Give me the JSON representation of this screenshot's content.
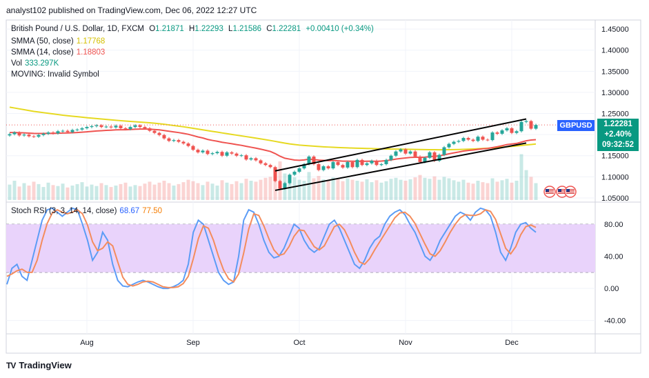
{
  "header": {
    "publisher": "analyst102 published on TradingView.com, Dec 06, 2022 12:27 UTC"
  },
  "legend": {
    "title": "British Pound / U.S. Dollar, 1D, FXCM",
    "ohlc": {
      "o_label": "O",
      "o": "1.21871",
      "h_label": "H",
      "h": "1.22293",
      "l_label": "L",
      "l": "1.21586",
      "c_label": "C",
      "c": "1.22281",
      "change": "+0.00410 (+0.34%)"
    },
    "smma50_label": "SMMA (50, close)",
    "smma50_value": "1.17768",
    "smma14_label": "SMMA (14, close)",
    "smma14_value": "1.18803",
    "vol_label": "Vol",
    "vol_value": "333.297K",
    "moving_label": "MOVING: Invalid Symbol"
  },
  "price_badges": {
    "symbol": "GBPUSD",
    "price": "1.22281",
    "change_pct": "+2.40%",
    "countdown": "09:32:52"
  },
  "stoch": {
    "label": "Stoch RSI (3, 3, 14, 14, close)",
    "k_value": "68.67",
    "d_value": "77.50"
  },
  "colors": {
    "up": "#26a69a",
    "down": "#ef5350",
    "smma50": "#e6d920",
    "smma14": "#ef5350",
    "k": "#5b9cf6",
    "d": "#f48c5c",
    "band": "#e9d3fb",
    "badge": "#2962ff"
  },
  "branding": {
    "name": "TradingView",
    "logo": "TV"
  },
  "chart_data": [
    {
      "type": "candlestick",
      "title": "British Pound / U.S. Dollar, 1D, FXCM",
      "x_ticks": [
        "Aug",
        "Sep",
        "Oct",
        "Nov",
        "Dec"
      ],
      "y_ticks": [
        "1.45000",
        "1.40000",
        "1.35000",
        "1.30000",
        "1.25000",
        "1.20000",
        "1.15000",
        "1.10000",
        "1.05000"
      ],
      "ylim": [
        1.045,
        1.46
      ],
      "x_tick_index": {
        "Aug": 16,
        "Sep": 38,
        "Oct": 60,
        "Nov": 82,
        "Dec": 104
      },
      "closes": [
        1.201,
        1.205,
        1.198,
        1.2,
        1.196,
        1.195,
        1.199,
        1.202,
        1.205,
        1.203,
        1.208,
        1.209,
        1.206,
        1.211,
        1.212,
        1.215,
        1.218,
        1.22,
        1.222,
        1.218,
        1.219,
        1.217,
        1.221,
        1.215,
        1.213,
        1.218,
        1.222,
        1.218,
        1.215,
        1.209,
        1.204,
        1.199,
        1.191,
        1.185,
        1.187,
        1.183,
        1.179,
        1.173,
        1.164,
        1.158,
        1.162,
        1.154,
        1.156,
        1.159,
        1.15,
        1.158,
        1.155,
        1.15,
        1.151,
        1.141,
        1.144,
        1.139,
        1.132,
        1.128,
        1.123,
        1.09,
        1.072,
        1.085,
        1.105,
        1.112,
        1.12,
        1.13,
        1.148,
        1.13,
        1.116,
        1.125,
        1.12,
        1.135,
        1.128,
        1.122,
        1.135,
        1.123,
        1.14,
        1.128,
        1.132,
        1.138,
        1.128,
        1.13,
        1.14,
        1.15,
        1.16,
        1.165,
        1.155,
        1.16,
        1.148,
        1.135,
        1.145,
        1.158,
        1.138,
        1.152,
        1.17,
        1.178,
        1.183,
        1.185,
        1.192,
        1.188,
        1.185,
        1.195,
        1.188,
        1.187,
        1.205,
        1.202,
        1.21,
        1.215,
        1.204,
        1.208,
        1.23,
        1.232,
        1.214,
        1.2228
      ],
      "smma50": [
        1.265,
        1.263,
        1.261,
        1.259,
        1.257,
        1.255,
        1.2535,
        1.252,
        1.2505,
        1.249,
        1.2475,
        1.246,
        1.2448,
        1.2436,
        1.2424,
        1.2412,
        1.24,
        1.239,
        1.238,
        1.237,
        1.236,
        1.235,
        1.234,
        1.233,
        1.232,
        1.2312,
        1.2304,
        1.2296,
        1.2288,
        1.228,
        1.227,
        1.2258,
        1.2245,
        1.223,
        1.2215,
        1.22,
        1.2185,
        1.2168,
        1.215,
        1.2131,
        1.2112,
        1.2094,
        1.2076,
        1.2059,
        1.204,
        1.2022,
        1.2005,
        1.1987,
        1.197,
        1.1952,
        1.1935,
        1.1917,
        1.1898,
        1.188,
        1.186,
        1.184,
        1.1818,
        1.1798,
        1.178,
        1.1765,
        1.1752,
        1.1742,
        1.1734,
        1.1726,
        1.1718,
        1.1711,
        1.1705,
        1.1699,
        1.1694,
        1.1689,
        1.1685,
        1.1681,
        1.1678,
        1.1675,
        1.1672,
        1.1669,
        1.1666,
        1.1663,
        1.166,
        1.1658,
        1.1656,
        1.1654,
        1.1652,
        1.165,
        1.1648,
        1.1646,
        1.1644,
        1.1643,
        1.1642,
        1.1641,
        1.1641,
        1.1642,
        1.1644,
        1.1646,
        1.165,
        1.1655,
        1.166,
        1.1666,
        1.1672,
        1.1678,
        1.1686,
        1.1694,
        1.1702,
        1.1711,
        1.172,
        1.173,
        1.1742,
        1.1755,
        1.1766,
        1.1777
      ],
      "smma14": [
        1.205,
        1.205,
        1.2045,
        1.204,
        1.2035,
        1.2028,
        1.2027,
        1.2026,
        1.2028,
        1.2028,
        1.2033,
        1.2037,
        1.2039,
        1.2044,
        1.205,
        1.2057,
        1.2066,
        1.2075,
        1.2086,
        1.2093,
        1.21,
        1.2105,
        1.2112,
        1.2114,
        1.2115,
        1.212,
        1.2127,
        1.2131,
        1.2132,
        1.2128,
        1.2121,
        1.2112,
        1.2096,
        1.2079,
        1.2064,
        1.2048,
        1.2029,
        1.2007,
        1.1977,
        1.1945,
        1.192,
        1.1886,
        1.1862,
        1.1843,
        1.1818,
        1.1801,
        1.1784,
        1.1763,
        1.1746,
        1.1722,
        1.1701,
        1.168,
        1.1655,
        1.1629,
        1.1601,
        1.155,
        1.1488,
        1.144,
        1.1419,
        1.1397,
        1.1392,
        1.14,
        1.142,
        1.141,
        1.1395,
        1.139,
        1.1383,
        1.1385,
        1.138,
        1.1371,
        1.1372,
        1.1369,
        1.137,
        1.1367,
        1.1369,
        1.1371,
        1.1368,
        1.1373,
        1.1383,
        1.14,
        1.142,
        1.1435,
        1.1447,
        1.1459,
        1.1463,
        1.1462,
        1.1466,
        1.148,
        1.1485,
        1.1498,
        1.152,
        1.1545,
        1.1567,
        1.1587,
        1.161,
        1.1624,
        1.1634,
        1.165,
        1.1663,
        1.1671,
        1.1692,
        1.1713,
        1.1737,
        1.1763,
        1.1777,
        1.1791,
        1.1822,
        1.1853,
        1.1872,
        1.188
      ],
      "volume": [
        0.32,
        0.4,
        0.28,
        0.35,
        0.3,
        0.38,
        0.33,
        0.27,
        0.36,
        0.31,
        0.29,
        0.34,
        0.26,
        0.3,
        0.33,
        0.37,
        0.28,
        0.32,
        0.29,
        0.35,
        0.31,
        0.27,
        0.3,
        0.33,
        0.36,
        0.28,
        0.31,
        0.29,
        0.34,
        0.38,
        0.32,
        0.36,
        0.4,
        0.35,
        0.3,
        0.33,
        0.37,
        0.42,
        0.39,
        0.35,
        0.31,
        0.38,
        0.34,
        0.3,
        0.41,
        0.36,
        0.33,
        0.39,
        0.35,
        0.44,
        0.4,
        0.38,
        0.42,
        0.46,
        0.48,
        0.66,
        0.8,
        0.55,
        0.52,
        0.47,
        0.42,
        0.4,
        0.58,
        0.45,
        0.5,
        0.43,
        0.41,
        0.47,
        0.44,
        0.39,
        0.45,
        0.42,
        0.4,
        0.38,
        0.43,
        0.37,
        0.41,
        0.36,
        0.39,
        0.44,
        0.46,
        0.42,
        0.4,
        0.43,
        0.47,
        0.52,
        0.46,
        0.44,
        0.49,
        0.42,
        0.48,
        0.45,
        0.41,
        0.38,
        0.42,
        0.36,
        0.34,
        0.4,
        0.37,
        0.35,
        0.45,
        0.38,
        0.41,
        0.44,
        0.36,
        0.4,
        0.95,
        0.62,
        0.48,
        0.35
      ]
    },
    {
      "type": "line",
      "title": "Stoch RSI (3, 3, 14, 14, close)",
      "y_ticks": [
        "80.00",
        "40.00",
        "0.00",
        "-40.00"
      ],
      "ylim": [
        -55,
        105
      ],
      "band": [
        20,
        80
      ],
      "series": [
        {
          "name": "K",
          "values": [
            5,
            25,
            30,
            15,
            10,
            35,
            60,
            85,
            98,
            100,
            95,
            90,
            95,
            100,
            98,
            80,
            60,
            35,
            45,
            70,
            60,
            30,
            10,
            3,
            2,
            5,
            8,
            10,
            8,
            5,
            2,
            0,
            0,
            2,
            5,
            10,
            30,
            70,
            85,
            80,
            60,
            40,
            20,
            10,
            5,
            8,
            40,
            85,
            98,
            95,
            80,
            60,
            45,
            38,
            40,
            50,
            65,
            80,
            75,
            60,
            50,
            45,
            50,
            65,
            80,
            85,
            75,
            60,
            45,
            30,
            25,
            35,
            50,
            60,
            65,
            80,
            90,
            95,
            98,
            92,
            80,
            70,
            55,
            40,
            35,
            45,
            60,
            70,
            80,
            90,
            95,
            92,
            85,
            95,
            100,
            98,
            90,
            70,
            45,
            35,
            50,
            70,
            80,
            82,
            75,
            70
          ]
        },
        {
          "name": "D",
          "values": [
            15,
            18,
            22,
            24,
            20,
            20,
            35,
            60,
            81,
            94,
            98,
            95,
            93,
            95,
            98,
            93,
            79,
            58,
            47,
            50,
            58,
            53,
            33,
            14,
            5,
            3,
            5,
            8,
            9,
            8,
            5,
            2,
            1,
            1,
            2,
            6,
            15,
            37,
            62,
            78,
            75,
            60,
            40,
            23,
            12,
            8,
            18,
            44,
            74,
            93,
            91,
            78,
            62,
            48,
            41,
            43,
            52,
            65,
            73,
            72,
            62,
            52,
            48,
            53,
            65,
            77,
            80,
            73,
            60,
            45,
            33,
            30,
            37,
            48,
            58,
            68,
            78,
            88,
            94,
            95,
            90,
            81,
            68,
            55,
            43,
            40,
            47,
            58,
            70,
            80,
            88,
            92,
            91,
            91,
            93,
            98,
            96,
            86,
            68,
            50,
            43,
            52,
            67,
            77,
            79,
            76
          ]
        }
      ],
      "x_ticks": [
        "Aug",
        "Sep",
        "Oct",
        "Nov",
        "Dec"
      ]
    }
  ]
}
